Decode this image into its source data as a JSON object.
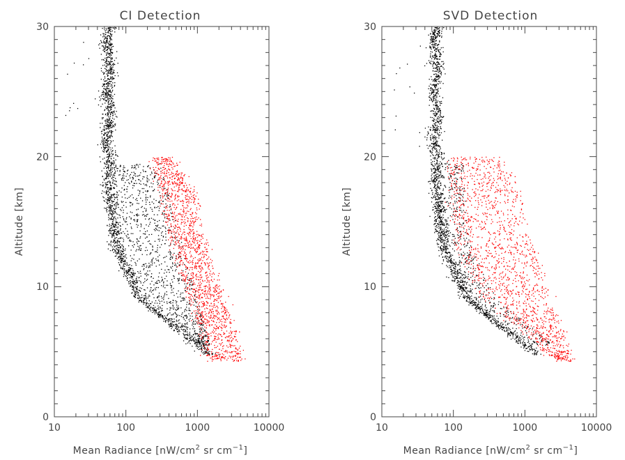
{
  "chart_data": [
    {
      "type": "scatter",
      "title": "CI Detection",
      "xlabel_main": "Mean Radiance [nW/cm",
      "xlabel_sup1": "2",
      "xlabel_mid": " sr cm",
      "xlabel_sup2": "−1",
      "xlabel_end": "]",
      "ylabel": "Altitude [km]",
      "x_scale": "log",
      "xlim": [
        10,
        10000
      ],
      "ylim": [
        0,
        30
      ],
      "x_ticks": [
        "10",
        "100",
        "1000",
        "10000"
      ],
      "y_ticks": [
        "0",
        "10",
        "20",
        "30"
      ],
      "grid": false,
      "series": [
        {
          "color": "#000000",
          "description_points": [
            {
              "x": 60,
              "y": 30
            },
            {
              "x": 55,
              "y": 25
            },
            {
              "x": 58,
              "y": 20
            },
            {
              "x": 60,
              "y": 16
            },
            {
              "x": 80,
              "y": 12
            },
            {
              "x": 150,
              "y": 9
            },
            {
              "x": 500,
              "y": 6
            }
          ]
        },
        {
          "color": "#ff0000",
          "description_points": [
            {
              "x": 400,
              "y": 19
            },
            {
              "x": 1000,
              "y": 15
            },
            {
              "x": 2000,
              "y": 11
            },
            {
              "x": 3000,
              "y": 8
            },
            {
              "x": 5000,
              "y": 5
            }
          ]
        }
      ]
    },
    {
      "type": "scatter",
      "title": "SVD Detection",
      "xlabel_main": "Mean Radiance [nW/cm",
      "xlabel_sup1": "2",
      "xlabel_mid": " sr cm",
      "xlabel_sup2": "−1",
      "xlabel_end": "]",
      "ylabel": "Altitude [km]",
      "x_scale": "log",
      "xlim": [
        10,
        10000
      ],
      "ylim": [
        0,
        30
      ],
      "x_ticks": [
        "10",
        "100",
        "1000",
        "10000"
      ],
      "y_ticks": [
        "0",
        "10",
        "20",
        "30"
      ],
      "grid": false,
      "series": [
        {
          "color": "#000000",
          "description_points": [
            {
              "x": 60,
              "y": 30
            },
            {
              "x": 55,
              "y": 25
            },
            {
              "x": 58,
              "y": 20
            },
            {
              "x": 60,
              "y": 16
            },
            {
              "x": 80,
              "y": 12
            },
            {
              "x": 150,
              "y": 9
            },
            {
              "x": 500,
              "y": 7
            }
          ]
        },
        {
          "color": "#ff0000",
          "description_points": [
            {
              "x": 150,
              "y": 19
            },
            {
              "x": 800,
              "y": 15
            },
            {
              "x": 2000,
              "y": 11
            },
            {
              "x": 3000,
              "y": 8
            },
            {
              "x": 5000,
              "y": 5
            }
          ]
        }
      ]
    }
  ]
}
